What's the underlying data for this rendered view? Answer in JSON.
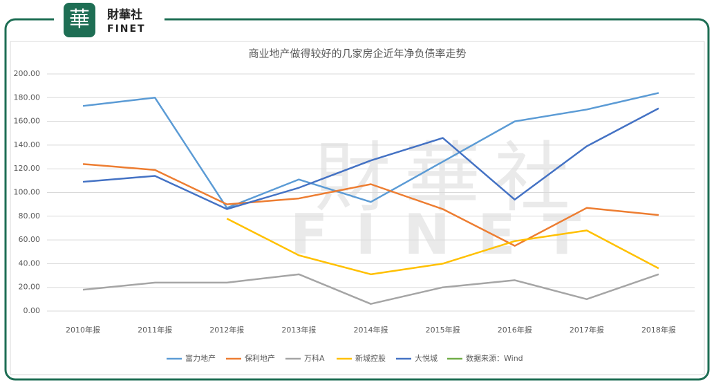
{
  "logo": {
    "name": "財華社",
    "en": "FINET"
  },
  "chart_data": {
    "type": "line",
    "title": "商业地产做得较好的几家房企近年净负债率走势",
    "categories": [
      "2010年报",
      "2011年报",
      "2012年报",
      "2013年报",
      "2014年报",
      "2015年报",
      "2016年报",
      "2017年报",
      "2018年报"
    ],
    "series": [
      {
        "name": "富力地产",
        "color": "#5b9bd5",
        "values": [
          173,
          180,
          87,
          111,
          92,
          126,
          160,
          170,
          184
        ]
      },
      {
        "name": "保利地产",
        "color": "#ed7d31",
        "values": [
          124,
          119,
          90,
          95,
          107,
          86,
          55,
          87,
          81
        ]
      },
      {
        "name": "万科A",
        "color": "#a5a5a5",
        "values": [
          18,
          24,
          24,
          31,
          6,
          20,
          26,
          10,
          31
        ]
      },
      {
        "name": "新城控股",
        "color": "#ffc000",
        "values": [
          null,
          null,
          78,
          47,
          31,
          40,
          59,
          68,
          36
        ]
      },
      {
        "name": "大悦城",
        "color": "#4472c4",
        "values": [
          109,
          114,
          86,
          104,
          127,
          146,
          94,
          139,
          171
        ]
      },
      {
        "name": "数据来源：Wind",
        "color": "#70ad47",
        "values": [
          null,
          null,
          null,
          null,
          null,
          null,
          null,
          null,
          null
        ]
      }
    ],
    "ylim": [
      0,
      200
    ],
    "yticks": [
      {
        "value": 0,
        "label": "0.00"
      },
      {
        "value": 20,
        "label": "20.00"
      },
      {
        "value": 40,
        "label": "40.00"
      },
      {
        "value": 60,
        "label": "60.00"
      },
      {
        "value": 80,
        "label": "80.00"
      },
      {
        "value": 100,
        "label": "100.00"
      },
      {
        "value": 120,
        "label": "120.00"
      },
      {
        "value": 140,
        "label": "140.00"
      },
      {
        "value": 160,
        "label": "160.00"
      },
      {
        "value": 180,
        "label": "180.00"
      },
      {
        "value": 200,
        "label": "200.00"
      }
    ],
    "grid": true,
    "legend": "bottom"
  }
}
